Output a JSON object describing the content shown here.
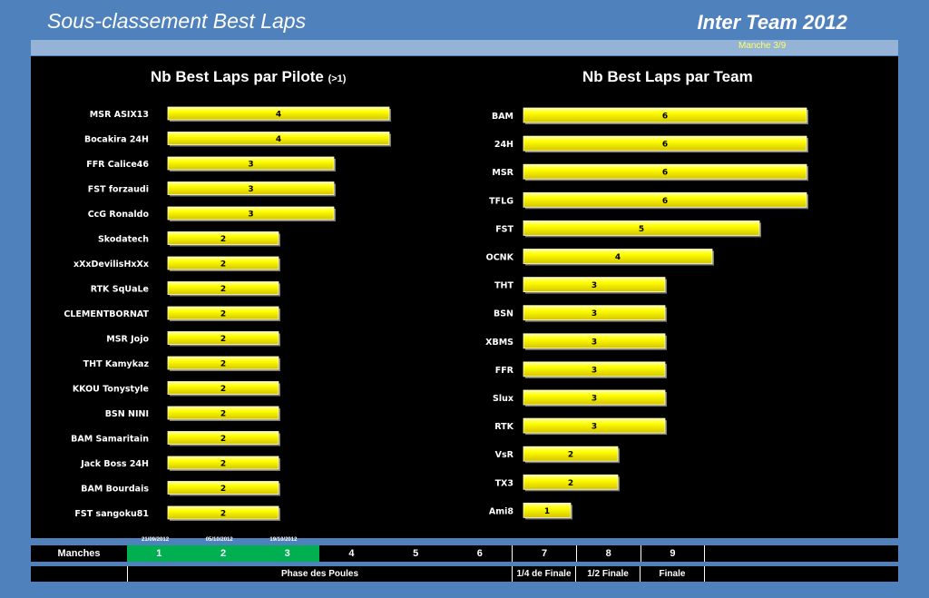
{
  "header": {
    "title": "Sous-classement Best Laps",
    "right_title": "Inter Team 2012",
    "manche": "Manche 3/9"
  },
  "chart_data": [
    {
      "type": "bar",
      "orientation": "horizontal",
      "title": "Nb Best Laps par Pilote",
      "title_suffix": "(>1)",
      "categories": [
        "MSR ASIX13",
        "Bocakira 24H",
        "FFR Calice46",
        "FST forzaudi",
        "CcG Ronaldo",
        "Skodatech",
        "xXxDevilisHxXx",
        "RTK SqUaLe",
        "CLEMENTBORNAT",
        "MSR Jojo",
        "THT Kamykaz",
        "KKOU Tonystyle",
        "BSN NINI",
        "BAM Samaritain",
        "Jack Boss 24H",
        "BAM Bourdais",
        "FST sangoku81"
      ],
      "values": [
        4,
        4,
        3,
        3,
        3,
        2,
        2,
        2,
        2,
        2,
        2,
        2,
        2,
        2,
        2,
        2,
        2
      ],
      "bar_color": "#ffff00",
      "grid": false
    },
    {
      "type": "bar",
      "orientation": "horizontal",
      "title": "Nb Best Laps par Team",
      "categories": [
        "BAM",
        "24H",
        "MSR",
        "TFLG",
        "FST",
        "OCNK",
        "THT",
        "BSN",
        "XBMS",
        "FFR",
        "Slux",
        "RTK",
        "VsR",
        "TX3",
        "Ami8"
      ],
      "values": [
        6,
        6,
        6,
        6,
        5,
        4,
        3,
        3,
        3,
        3,
        3,
        3,
        2,
        2,
        1
      ],
      "bar_color": "#ffff00",
      "grid": false
    }
  ],
  "footer": {
    "manches_label": "Manches",
    "manches": [
      {
        "num": "1",
        "date": "21/09/2012",
        "done": true
      },
      {
        "num": "2",
        "date": "05/10/2012",
        "done": true
      },
      {
        "num": "3",
        "date": "19/10/2012",
        "done": true
      },
      {
        "num": "4",
        "date": "",
        "done": false
      },
      {
        "num": "5",
        "date": "",
        "done": false
      },
      {
        "num": "6",
        "date": "",
        "done": false
      },
      {
        "num": "7",
        "date": "",
        "done": false
      },
      {
        "num": "8",
        "date": "",
        "done": false
      },
      {
        "num": "9",
        "date": "",
        "done": false
      }
    ],
    "phases": [
      "Phase des Poules",
      "1/4 de Finale",
      "1/2 Finale",
      "Finale"
    ]
  }
}
